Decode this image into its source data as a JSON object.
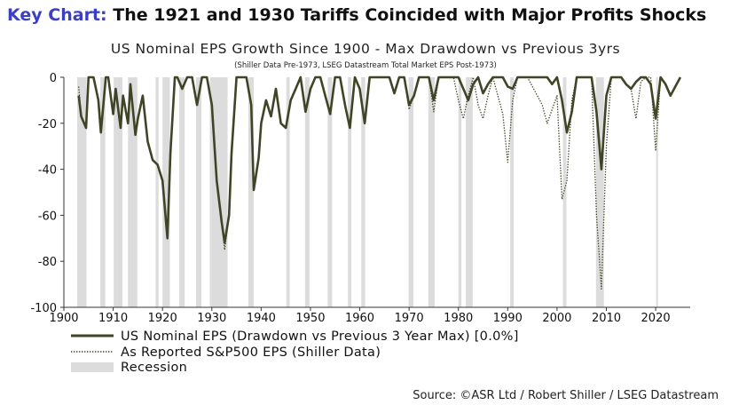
{
  "header": {
    "key_label": "Key Chart:",
    "headline": "The 1921 and 1930 Tariffs Coincided with Major Profits Shocks"
  },
  "source": "Source: ©ASR Ltd / Robert Shiller / LSEG Datastream",
  "chart_data": {
    "type": "line",
    "title": "US Nominal EPS Growth Since 1900 - Max Drawdown vs Previous 3yrs",
    "subtitle": "(Shiller Data Pre-1973, LSEG Datastream Total Market EPS Post-1973)",
    "xlabel": "",
    "ylabel": "",
    "xlim": [
      1900,
      2027
    ],
    "ylim": [
      -100,
      0
    ],
    "xticks": [
      1900,
      1910,
      1920,
      1930,
      1940,
      1950,
      1960,
      1970,
      1980,
      1990,
      2000,
      2010,
      2020
    ],
    "yticks": [
      0,
      -20,
      -40,
      -60,
      -80,
      -100
    ],
    "grid": false,
    "legend_position": "bottom-left",
    "colors": {
      "series1": "#3f4526",
      "series2": "#3f4526",
      "recession": "#dcdcdc",
      "key_label": "#3a3fc4"
    },
    "recessions": [
      [
        1902.7,
        1904.6
      ],
      [
        1907.4,
        1908.4
      ],
      [
        1910.1,
        1911.9
      ],
      [
        1913.0,
        1914.9
      ],
      [
        1918.6,
        1919.2
      ],
      [
        1920.0,
        1921.5
      ],
      [
        1923.4,
        1924.5
      ],
      [
        1926.8,
        1927.9
      ],
      [
        1929.6,
        1933.2
      ],
      [
        1937.4,
        1938.5
      ],
      [
        1945.1,
        1945.8
      ],
      [
        1948.9,
        1949.8
      ],
      [
        1953.5,
        1954.4
      ],
      [
        1957.6,
        1958.3
      ],
      [
        1960.3,
        1961.1
      ],
      [
        1969.9,
        1970.9
      ],
      [
        1973.9,
        1975.2
      ],
      [
        1980.0,
        1980.6
      ],
      [
        1981.5,
        1982.9
      ],
      [
        1990.5,
        1991.2
      ],
      [
        2001.2,
        2001.9
      ],
      [
        2007.9,
        2009.5
      ],
      [
        2020.1,
        2020.4
      ]
    ],
    "series": [
      {
        "name": "US Nominal EPS (Drawdown vs Previous 3 Year Max) [0.0%]",
        "style": "solid",
        "x": [
          1903,
          1903.5,
          1904.5,
          1905,
          1906,
          1907,
          1907.5,
          1908.5,
          1909,
          1910,
          1910.5,
          1911.5,
          1912,
          1913,
          1913.5,
          1914.5,
          1915,
          1916,
          1917,
          1918,
          1919,
          1920,
          1921,
          1921.6,
          1922.5,
          1923,
          1924,
          1925,
          1926,
          1927,
          1928,
          1929,
          1930,
          1931,
          1932,
          1932.6,
          1933.5,
          1934,
          1935,
          1936,
          1937,
          1938,
          1938.5,
          1939.5,
          1940,
          1941,
          1942,
          1943,
          1944,
          1945,
          1946,
          1947,
          1948,
          1949,
          1950,
          1951,
          1952,
          1953,
          1954,
          1955,
          1956,
          1957,
          1958,
          1959,
          1960,
          1961,
          1962,
          1963,
          1964,
          1966,
          1967,
          1968,
          1969,
          1970,
          1971,
          1972,
          1974,
          1975,
          1976,
          1980,
          1981,
          1982,
          1983,
          1984,
          1985,
          1986,
          1987,
          1989,
          1990,
          1991,
          1992,
          1993,
          1995,
          1996,
          1998,
          1999,
          2000,
          2001,
          2002,
          2003,
          2004,
          2006,
          2007,
          2008,
          2009,
          2010,
          2011,
          2013,
          2014,
          2015,
          2016,
          2017,
          2018,
          2019,
          2020,
          2021,
          2022,
          2023,
          2024,
          2025
        ],
        "values": [
          -8,
          -17,
          -22,
          0,
          0,
          -10,
          -24,
          0,
          0,
          -16,
          -5,
          -22,
          -8,
          -20,
          -3,
          -25,
          -18,
          -8,
          -28,
          -36,
          -38,
          -45,
          -70,
          -33,
          0,
          0,
          -5,
          0,
          0,
          -12,
          0,
          0,
          -12,
          -45,
          -63,
          -72,
          -60,
          -33,
          0,
          0,
          0,
          -12,
          -49,
          -35,
          -20,
          -10,
          -17,
          -5,
          -20,
          -22,
          -10,
          -5,
          0,
          -15,
          -5,
          0,
          0,
          -8,
          -16,
          0,
          0,
          -12,
          -22,
          0,
          -5,
          -20,
          0,
          0,
          0,
          0,
          -7,
          0,
          0,
          -12,
          -8,
          0,
          0,
          -10,
          0,
          0,
          -5,
          -10,
          -3,
          0,
          -7,
          -3,
          0,
          0,
          -4,
          -5,
          0,
          0,
          0,
          0,
          0,
          -3,
          0,
          -10,
          -24,
          -15,
          0,
          0,
          0,
          -15,
          -40,
          -8,
          0,
          0,
          -3,
          -5,
          -2,
          0,
          0,
          -3,
          -18,
          0,
          -3,
          -8,
          -4,
          0
        ]
      },
      {
        "name": "As Reported S&P500 EPS (Shiller Data)",
        "style": "dotted",
        "x": [
          1903,
          1903.5,
          1904.5,
          1905,
          1906,
          1907,
          1907.5,
          1908.5,
          1909,
          1910,
          1910.5,
          1911.5,
          1912,
          1913,
          1913.5,
          1914.5,
          1915,
          1916,
          1917,
          1918,
          1919,
          1920,
          1921,
          1921.6,
          1922.5,
          1923,
          1924,
          1925,
          1926,
          1927,
          1928,
          1929,
          1930,
          1931,
          1932,
          1932.6,
          1933.5,
          1934,
          1935,
          1936,
          1937,
          1938,
          1938.5,
          1939.5,
          1940,
          1941,
          1942,
          1943,
          1944,
          1945,
          1946,
          1947,
          1948,
          1949,
          1950,
          1951,
          1952,
          1953,
          1954,
          1955,
          1956,
          1957,
          1958,
          1959,
          1960,
          1961,
          1962,
          1963,
          1964,
          1966,
          1967,
          1968,
          1969,
          1970,
          1971,
          1972,
          1974,
          1975,
          1976,
          1979,
          1980,
          1981,
          1982,
          1983,
          1984,
          1985,
          1986,
          1987,
          1989,
          1990,
          1991,
          1992,
          1993,
          1994,
          1997,
          1998,
          2000,
          2001,
          2002,
          2003,
          2004,
          2007,
          2008,
          2009,
          2010,
          2011,
          2013,
          2014,
          2015,
          2016,
          2017,
          2018,
          2019,
          2020,
          2021,
          2022,
          2023,
          2024,
          2025
        ],
        "values": [
          -4,
          -17,
          -22,
          0,
          0,
          -10,
          -24,
          0,
          0,
          -16,
          -5,
          -22,
          -8,
          -20,
          -3,
          -25,
          -18,
          -8,
          -28,
          -36,
          -38,
          -45,
          -70,
          -33,
          0,
          0,
          -5,
          0,
          0,
          -12,
          0,
          0,
          -12,
          -45,
          -63,
          -75,
          -60,
          -33,
          0,
          0,
          0,
          -12,
          -49,
          -35,
          -20,
          -10,
          -17,
          -5,
          -20,
          -22,
          -10,
          -5,
          0,
          -15,
          -5,
          0,
          0,
          -8,
          -16,
          0,
          0,
          -12,
          -22,
          0,
          -5,
          -20,
          0,
          0,
          0,
          0,
          -7,
          0,
          0,
          -14,
          -8,
          0,
          0,
          -15,
          0,
          0,
          -10,
          -18,
          -8,
          0,
          -12,
          -18,
          -8,
          0,
          -16,
          -37,
          -10,
          0,
          0,
          0,
          -12,
          -20,
          -8,
          -53,
          -45,
          -10,
          0,
          0,
          -60,
          -92,
          -30,
          0,
          0,
          -3,
          -5,
          -18,
          -2,
          0,
          0,
          -32,
          0,
          -3,
          -8,
          -4,
          0
        ]
      }
    ],
    "legend": [
      "US Nominal EPS (Drawdown vs Previous 3 Year Max) [0.0%]",
      "As Reported S&P500 EPS (Shiller Data)",
      "Recession"
    ]
  }
}
